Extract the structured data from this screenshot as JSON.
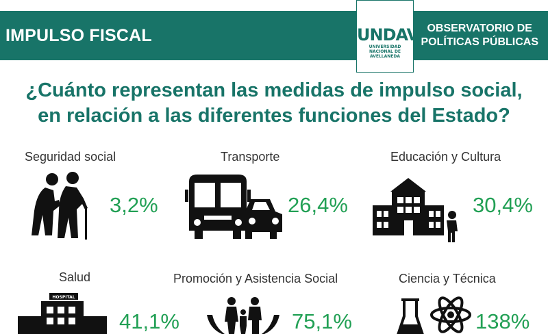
{
  "header": {
    "left_title": "IMPULSO FISCAL",
    "right_line1": "OBSERVATORIO DE",
    "right_line2": "POLÍTICAS PÚBLICAS",
    "logo_mark": "UNDAV",
    "logo_line1": "UNIVERSIDAD",
    "logo_line2": "NACIONAL DE",
    "logo_line3": "AVELLANEDA"
  },
  "question": {
    "line1": "¿Cuánto representan las medidas de impulso social,",
    "line2": "en relación a las diferentes funciones del Estado?"
  },
  "items": [
    {
      "label": "Seguridad social",
      "value": "3,2%",
      "icon": "elderly-couple-icon"
    },
    {
      "label": "Transporte",
      "value": "26,4%",
      "icon": "bus-car-icon"
    },
    {
      "label": "Educación y Cultura",
      "value": "30,4%",
      "icon": "school-icon"
    },
    {
      "label": "Salud",
      "value": "41,1%",
      "icon": "hospital-icon"
    },
    {
      "label": "Promoción y Asistencia Social",
      "value": "75,1%",
      "icon": "family-hands-icon"
    },
    {
      "label": "Ciencia y Técnica",
      "value": "138%",
      "icon": "science-icon"
    }
  ],
  "hospital_sign": "HOSPITAL",
  "colors": {
    "header_bg": "#187468",
    "title": "#187468",
    "value": "#22a055",
    "icon": "#111111"
  }
}
